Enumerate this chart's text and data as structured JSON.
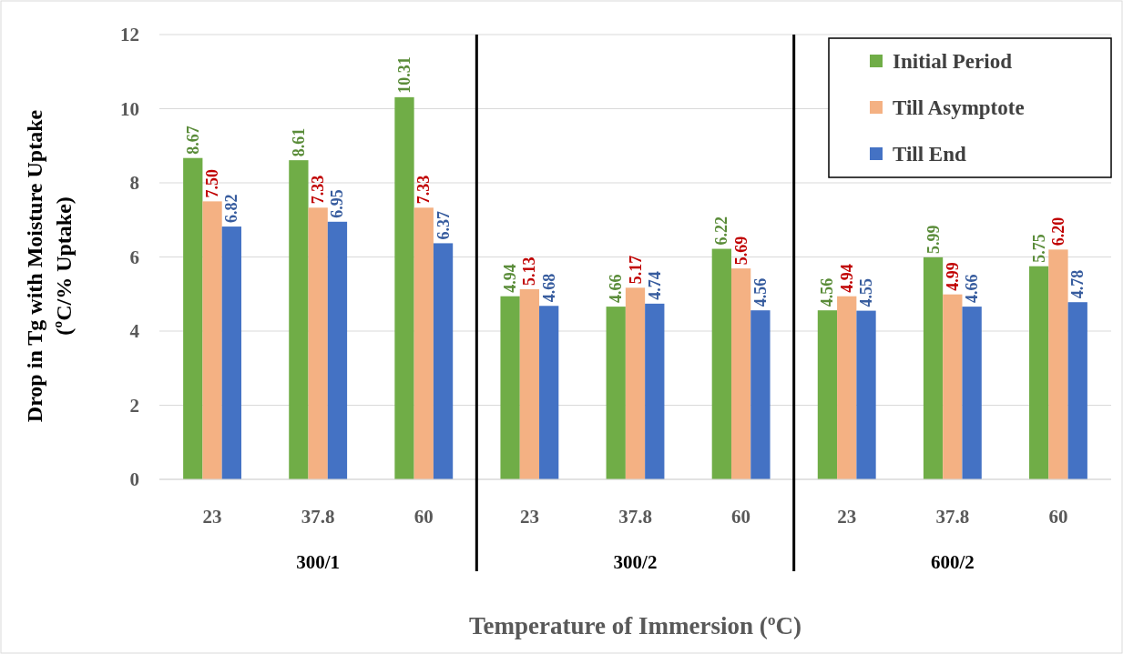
{
  "chart_data": {
    "type": "bar",
    "xlabel": "Temperature  of Immersion  (ºC)",
    "ylabel": "Drop in Tg with Moisture Uptake\n(ºC/% Uptake)",
    "categories": [
      "23",
      "37.8",
      "60",
      "23",
      "37.8",
      "60",
      "23",
      "37.8",
      "60"
    ],
    "series": [
      {
        "name": "Initial Period",
        "color": "#70ad47",
        "values": [
          8.67,
          8.61,
          10.31,
          4.94,
          4.66,
          6.22,
          4.56,
          5.99,
          5.75
        ]
      },
      {
        "name": "Till Asymptote",
        "color": "#f4b183",
        "values": [
          7.5,
          7.33,
          7.33,
          5.13,
          5.17,
          5.69,
          4.94,
          4.99,
          6.2
        ]
      },
      {
        "name": "Till End",
        "color": "#4472c4",
        "values": [
          6.82,
          6.95,
          6.37,
          4.68,
          4.74,
          4.56,
          4.55,
          4.66,
          4.78
        ]
      }
    ],
    "value_labels": [
      [
        "8.67",
        "8.61",
        "10.31",
        "4.94",
        "4.66",
        "6.22",
        "4.56",
        "5.99",
        "5.75"
      ],
      [
        "7.50",
        "7.33",
        "7.33",
        "5.13",
        "5.17",
        "5.69",
        "4.94",
        "4.99",
        "6.20"
      ],
      [
        "6.82",
        "6.95",
        "6.37",
        "4.68",
        "4.74",
        "4.56",
        "4.55",
        "4.66",
        "4.78"
      ]
    ],
    "annotations": [
      "300/1",
      "300/2",
      "600/2"
    ],
    "ylim": [
      0,
      12
    ],
    "yticks": [
      0,
      2,
      4,
      6,
      8,
      10,
      12
    ],
    "grid": "y",
    "legend": "top right"
  }
}
